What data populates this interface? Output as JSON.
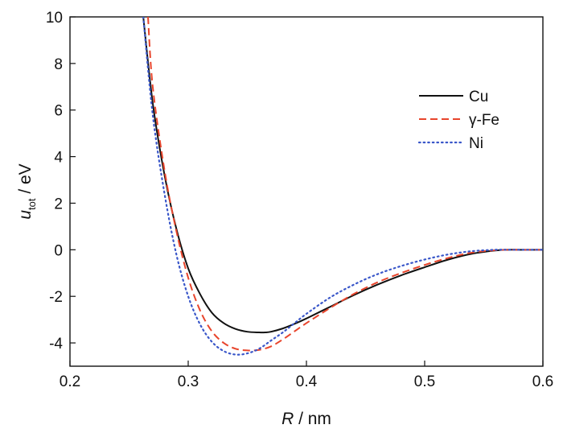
{
  "chart_data": {
    "type": "line",
    "xlabel": {
      "symbol": "R",
      "unit": " / nm"
    },
    "ylabel": {
      "symbol": "u",
      "subscript": "tot",
      "unit": " / eV"
    },
    "xlim": [
      0.2,
      0.6
    ],
    "ylim": [
      -5,
      10
    ],
    "xticks": [
      "0.2",
      "0.3",
      "0.4",
      "0.5",
      "0.6"
    ],
    "yticks": [
      "-4",
      "-2",
      "0",
      "2",
      "4",
      "6",
      "8",
      "10"
    ],
    "grid": false,
    "legend_position": "top-right",
    "series": [
      {
        "name": "Cu",
        "color": "#111111",
        "style": "solid",
        "x": [
          0.262,
          0.27,
          0.28,
          0.29,
          0.3,
          0.31,
          0.32,
          0.33,
          0.34,
          0.35,
          0.36,
          0.365,
          0.37,
          0.38,
          0.39,
          0.4,
          0.42,
          0.44,
          0.46,
          0.48,
          0.5,
          0.52,
          0.54,
          0.56,
          0.57,
          0.58,
          0.6
        ],
        "y": [
          10.0,
          6.3,
          3.2,
          0.9,
          -0.8,
          -1.9,
          -2.7,
          -3.15,
          -3.4,
          -3.52,
          -3.55,
          -3.55,
          -3.52,
          -3.38,
          -3.18,
          -2.95,
          -2.45,
          -1.95,
          -1.5,
          -1.1,
          -0.75,
          -0.42,
          -0.17,
          -0.03,
          0.0,
          0.0,
          0.0
        ]
      },
      {
        "name": "γ-Fe",
        "color": "#e8452c",
        "style": "dashed",
        "x": [
          0.266,
          0.27,
          0.28,
          0.29,
          0.3,
          0.31,
          0.32,
          0.33,
          0.34,
          0.35,
          0.36,
          0.37,
          0.38,
          0.39,
          0.4,
          0.42,
          0.44,
          0.46,
          0.48,
          0.5,
          0.52,
          0.54,
          0.56,
          0.57,
          0.58,
          0.6
        ],
        "y": [
          10.0,
          7.0,
          3.4,
          0.8,
          -1.2,
          -2.6,
          -3.5,
          -4.0,
          -4.25,
          -4.32,
          -4.3,
          -4.15,
          -3.85,
          -3.5,
          -3.15,
          -2.5,
          -1.9,
          -1.4,
          -1.0,
          -0.65,
          -0.35,
          -0.12,
          -0.02,
          0.0,
          0.0,
          0.0
        ]
      },
      {
        "name": "Ni",
        "color": "#3a57c9",
        "style": "dotted",
        "x": [
          0.262,
          0.27,
          0.28,
          0.29,
          0.3,
          0.31,
          0.32,
          0.33,
          0.34,
          0.35,
          0.36,
          0.37,
          0.38,
          0.39,
          0.4,
          0.42,
          0.44,
          0.46,
          0.48,
          0.5,
          0.52,
          0.54,
          0.56,
          0.57,
          0.58,
          0.6
        ],
        "y": [
          10.0,
          5.8,
          2.4,
          -0.2,
          -2.0,
          -3.2,
          -3.95,
          -4.35,
          -4.5,
          -4.45,
          -4.25,
          -3.9,
          -3.55,
          -3.15,
          -2.75,
          -2.05,
          -1.5,
          -1.05,
          -0.7,
          -0.42,
          -0.2,
          -0.06,
          0.0,
          0.0,
          0.0,
          0.0
        ]
      }
    ]
  }
}
